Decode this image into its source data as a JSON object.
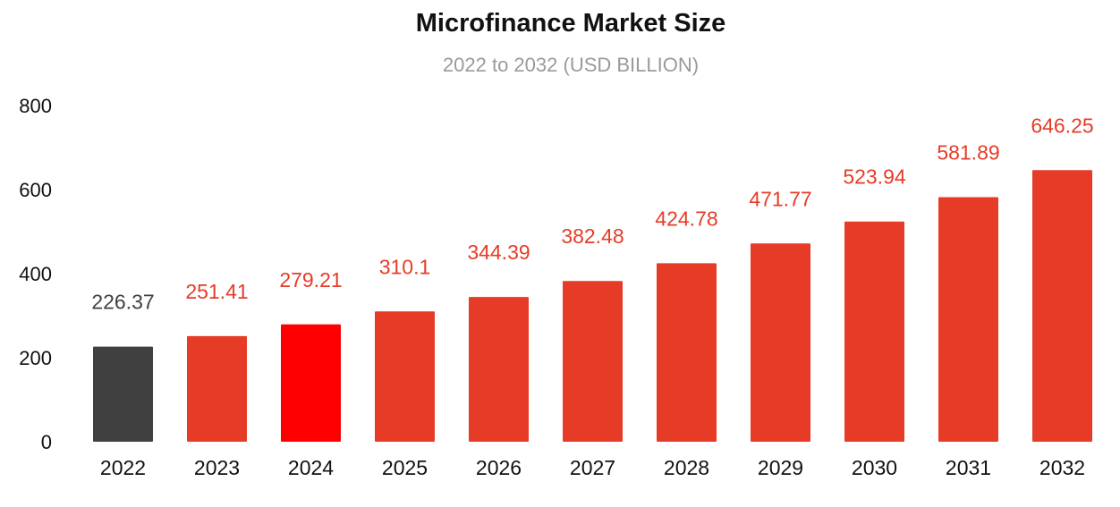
{
  "chart_data": {
    "type": "bar",
    "title": "Microfinance Market Size",
    "subtitle": "2022 to 2032 (USD BILLION)",
    "xlabel": "",
    "ylabel": "",
    "ylim": [
      0,
      800
    ],
    "yticks": [
      0,
      200,
      400,
      600,
      800
    ],
    "grid": false,
    "categories": [
      "2022",
      "2023",
      "2024",
      "2025",
      "2026",
      "2027",
      "2028",
      "2029",
      "2030",
      "2031",
      "2032"
    ],
    "values": [
      226.37,
      251.41,
      279.21,
      310.1,
      344.39,
      382.48,
      424.78,
      471.77,
      523.94,
      581.89,
      646.25
    ],
    "value_labels": [
      "226.37",
      "251.41",
      "279.21",
      "310.1",
      "344.39",
      "382.48",
      "424.78",
      "471.77",
      "523.94",
      "581.89",
      "646.25"
    ],
    "bar_colors": [
      "#404040",
      "#e63c27",
      "#ff0000",
      "#e63c27",
      "#e63c27",
      "#e63c27",
      "#e63c27",
      "#e63c27",
      "#e63c27",
      "#e63c27",
      "#e63c27"
    ],
    "label_colors": [
      "#404040",
      "#e63c27",
      "#e63c27",
      "#e63c27",
      "#e63c27",
      "#e63c27",
      "#e63c27",
      "#e63c27",
      "#e63c27",
      "#e63c27",
      "#e63c27"
    ],
    "colors": {
      "title": "#111111",
      "subtitle": "#9a9a9a",
      "axis_text": "#111111"
    }
  }
}
